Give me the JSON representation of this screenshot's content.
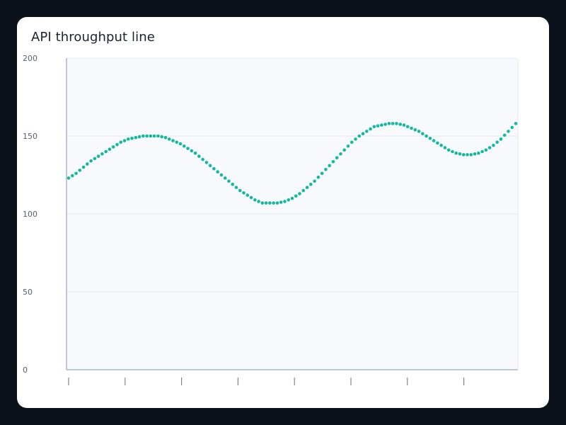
{
  "card": {
    "title": "API throughput line"
  },
  "colors": {
    "background": "#0d111b",
    "card": "#ffffff",
    "plot_background": "#f7f9fd",
    "gridline": "#e3e8f1",
    "axis": "#aab6c9",
    "series": "#14b89e"
  },
  "chart_data": {
    "type": "line",
    "title": "API throughput line",
    "xlabel": "",
    "ylabel": "",
    "ylim": [
      0,
      200
    ],
    "yticks": [
      0,
      50,
      100,
      150,
      200
    ],
    "x_tick_count": 8,
    "x_tick_labels": [
      "",
      "",
      "",
      "",
      "",
      "",
      "",
      ""
    ],
    "marker": "dot",
    "grid": true,
    "legend": "none",
    "series": [
      {
        "values": [
          123,
          126,
          130,
          134,
          137,
          140,
          143,
          146,
          148,
          149,
          150,
          150,
          150,
          149,
          147,
          145,
          142,
          139,
          135,
          131,
          127,
          123,
          119,
          115,
          112,
          109,
          107,
          107,
          107,
          108,
          110,
          113,
          117,
          121,
          126,
          131,
          136,
          141,
          146,
          150,
          153,
          156,
          157,
          158,
          158,
          157,
          155,
          153,
          150,
          147,
          144,
          141,
          139,
          138,
          138,
          139,
          141,
          144,
          148,
          153,
          158
        ]
      }
    ]
  }
}
